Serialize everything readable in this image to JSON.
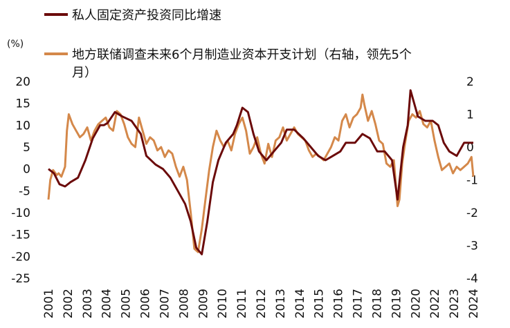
{
  "chart_data": {
    "type": "line",
    "unit_left": "(%)",
    "x_ticks": [
      "2001",
      "2002",
      "2003",
      "2004",
      "2005",
      "2006",
      "2007",
      "2008",
      "2009",
      "2010",
      "2011",
      "2012",
      "2013",
      "2014",
      "2015",
      "2016",
      "2017",
      "2018",
      "2019",
      "2020",
      "2022",
      "2023",
      "2024"
    ],
    "y_left": {
      "ylim": [
        -25,
        20
      ],
      "ticks": [
        "20",
        "15",
        "10",
        "5",
        "0",
        "-5",
        "-10",
        "-15",
        "-20",
        "-25"
      ]
    },
    "y_right": {
      "ylim": [
        -4,
        2
      ],
      "ticks": [
        "2",
        "1",
        "0",
        "-1",
        "-2",
        "-3",
        "-4"
      ]
    },
    "series": [
      {
        "name": "私人固定资产投资同比增速",
        "axis": "left",
        "color": "#6b0a0a",
        "x": [
          2001.0,
          2001.3,
          2001.6,
          2001.9,
          2002.2,
          2002.6,
          2003.0,
          2003.4,
          2003.8,
          2004.0,
          2004.2,
          2004.6,
          2005.0,
          2005.5,
          2006.0,
          2006.3,
          2006.8,
          2007.2,
          2007.6,
          2008.0,
          2008.4,
          2008.7,
          2009.0,
          2009.3,
          2009.6,
          2009.9,
          2010.2,
          2010.6,
          2011.0,
          2011.2,
          2011.5,
          2011.8,
          2012.1,
          2012.4,
          2012.8,
          2013.2,
          2013.6,
          2013.9,
          2014.3,
          2014.8,
          2015.2,
          2015.6,
          2016.0,
          2016.4,
          2016.8,
          2017.1,
          2017.6,
          2018.0,
          2018.4,
          2018.8,
          2019.2,
          2019.6,
          2019.9,
          2020.2,
          2020.45,
          2020.6,
          2021.0,
          2021.4,
          2021.8,
          2022.1,
          2022.4,
          2022.7,
          2023.1,
          2023.5,
          2024.0
        ],
        "y": [
          0,
          -1,
          -3.5,
          -4,
          -3,
          -2,
          2,
          7,
          10,
          10,
          10.5,
          13,
          12,
          11,
          8,
          3,
          1,
          0,
          -2,
          -5,
          -8,
          -12,
          -18,
          -19.5,
          -12,
          -3,
          2,
          6,
          8,
          10,
          14,
          13,
          8,
          4,
          2,
          4,
          6,
          9,
          9,
          7,
          5,
          3,
          2,
          3,
          4,
          6,
          6,
          8,
          7,
          4,
          4,
          2,
          -7,
          5,
          10,
          18,
          12,
          11,
          11,
          10,
          6,
          4,
          3,
          6,
          6
        ]
      },
      {
        "name": "地方联储调查未来6个月制造业资本开支计划（右轴，领先5个月）",
        "axis": "right",
        "color": "#d4884a",
        "x": [
          2001.0,
          2001.1,
          2001.25,
          2001.45,
          2001.55,
          2001.7,
          2001.9,
          2002.0,
          2002.1,
          2002.3,
          2002.5,
          2002.7,
          2002.9,
          2003.1,
          2003.3,
          2003.5,
          2003.7,
          2003.9,
          2004.1,
          2004.3,
          2004.5,
          2004.7,
          2004.9,
          2005.1,
          2005.3,
          2005.5,
          2005.7,
          2005.9,
          2006.1,
          2006.3,
          2006.5,
          2006.7,
          2006.9,
          2007.1,
          2007.3,
          2007.5,
          2007.7,
          2007.9,
          2008.1,
          2008.3,
          2008.5,
          2008.7,
          2008.9,
          2009.1,
          2009.3,
          2009.5,
          2009.7,
          2009.9,
          2010.1,
          2010.3,
          2010.5,
          2010.7,
          2010.9,
          2011.1,
          2011.3,
          2011.5,
          2011.7,
          2011.9,
          2012.1,
          2012.3,
          2012.5,
          2012.7,
          2012.9,
          2013.1,
          2013.3,
          2013.5,
          2013.7,
          2013.9,
          2014.1,
          2014.3,
          2014.5,
          2014.7,
          2014.9,
          2015.1,
          2015.3,
          2015.5,
          2015.7,
          2015.9,
          2016.1,
          2016.3,
          2016.5,
          2016.7,
          2016.9,
          2017.1,
          2017.3,
          2017.5,
          2017.7,
          2017.9,
          2018.0,
          2018.1,
          2018.3,
          2018.5,
          2018.7,
          2018.9,
          2019.1,
          2019.3,
          2019.5,
          2019.7,
          2019.9,
          2020.0,
          2020.15,
          2020.3,
          2020.5,
          2020.7,
          2020.9,
          2021.1,
          2021.3,
          2021.5,
          2021.7,
          2021.9,
          2022.1,
          2022.3,
          2022.5,
          2022.7,
          2022.9,
          2023.1,
          2023.3,
          2023.5,
          2023.7,
          2023.9,
          2024.0
        ],
        "y": [
          -1.6,
          -1.0,
          -0.7,
          -0.85,
          -0.8,
          -0.9,
          -0.6,
          0.5,
          1.0,
          0.7,
          0.5,
          0.3,
          0.4,
          0.6,
          0.2,
          0.5,
          0.7,
          0.8,
          0.9,
          0.6,
          0.5,
          1.1,
          1.0,
          0.7,
          0.3,
          0.1,
          0.0,
          0.9,
          0.5,
          0.1,
          0.3,
          0.2,
          -0.1,
          0.0,
          -0.3,
          -0.1,
          -0.2,
          -0.6,
          -0.9,
          -0.6,
          -1.0,
          -2.0,
          -3.1,
          -3.2,
          -2.5,
          -1.6,
          -0.7,
          0.0,
          0.5,
          0.2,
          0.0,
          0.2,
          -0.1,
          0.4,
          0.7,
          0.9,
          0.5,
          -0.2,
          0.0,
          0.3,
          -0.2,
          -0.5,
          0.1,
          -0.3,
          0.2,
          0.3,
          0.6,
          0.2,
          0.4,
          0.6,
          0.4,
          0.3,
          0.2,
          -0.1,
          -0.3,
          -0.2,
          -0.3,
          -0.4,
          -0.2,
          0.0,
          0.3,
          0.2,
          0.8,
          1.0,
          0.6,
          0.9,
          1.0,
          1.2,
          1.6,
          1.3,
          0.8,
          1.1,
          0.7,
          0.2,
          0.1,
          -0.5,
          -0.6,
          -0.4,
          -1.8,
          -1.6,
          -0.5,
          0.1,
          0.8,
          1.0,
          0.9,
          1.1,
          0.7,
          0.6,
          0.8,
          0.2,
          -0.3,
          -0.7,
          -0.6,
          -0.5,
          -0.8,
          -0.6,
          -0.7,
          -0.6,
          -0.5,
          -0.3,
          -0.9
        ]
      }
    ]
  }
}
